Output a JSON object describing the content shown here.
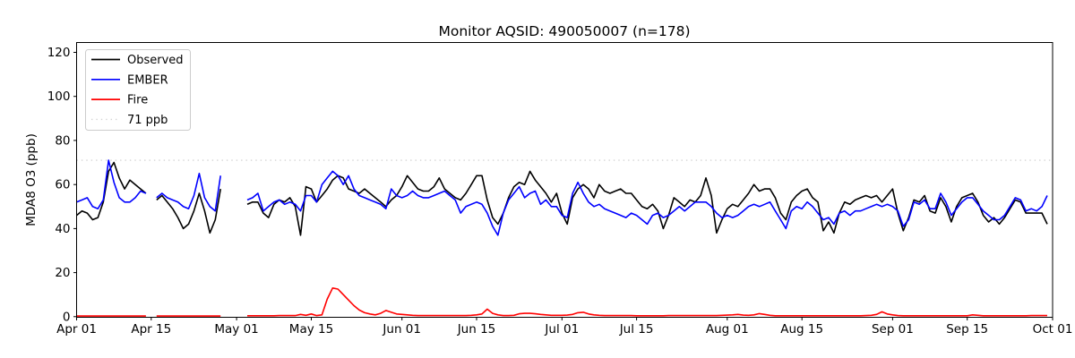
{
  "chart_data": {
    "type": "line",
    "title": "Monitor AQSID: 490050007 (n=178)",
    "xlabel": "",
    "ylabel": "MDA8 O3 (ppb)",
    "n_label": "n=178",
    "ylim": [
      0,
      124
    ],
    "grid": false,
    "yticks": [
      0,
      20,
      40,
      60,
      80,
      100,
      120
    ],
    "xticks": [
      {
        "label": "Apr 01",
        "day": 0
      },
      {
        "label": "Apr 15",
        "day": 14
      },
      {
        "label": "May 01",
        "day": 30
      },
      {
        "label": "May 15",
        "day": 44
      },
      {
        "label": "Jun 01",
        "day": 61
      },
      {
        "label": "Jun 15",
        "day": 75
      },
      {
        "label": "Jul 01",
        "day": 91
      },
      {
        "label": "Jul 15",
        "day": 105
      },
      {
        "label": "Aug 01",
        "day": 122
      },
      {
        "label": "Aug 15",
        "day": 136
      },
      {
        "label": "Sep 01",
        "day": 153
      },
      {
        "label": "Sep 15",
        "day": 167
      },
      {
        "label": "Oct 01",
        "day": 183
      }
    ],
    "threshold": {
      "label": "71 ppb",
      "value": 71,
      "color": "#d3d3d3",
      "style": "dotted"
    },
    "legend": {
      "position": "upper left",
      "entries": [
        {
          "id": "observed",
          "label": "Observed",
          "color": "#000000",
          "dotted": false
        },
        {
          "id": "ember",
          "label": "EMBER",
          "color": "#0000ff",
          "dotted": false
        },
        {
          "id": "fire",
          "label": "Fire",
          "color": "#ff0000",
          "dotted": false
        },
        {
          "id": "threshold",
          "label": "71 ppb",
          "color": "#d3d3d3",
          "dotted": true
        }
      ]
    },
    "x_axis_note": "daily values, Apr 01 through Sep 30; nulls are missing monitor days",
    "series": [
      {
        "id": "observed",
        "name": "Observed",
        "color": "#000000",
        "values": [
          46,
          48,
          47,
          44,
          45,
          52,
          66,
          70,
          63,
          58,
          62,
          60,
          58,
          56,
          null,
          53,
          55,
          52,
          49,
          45,
          40,
          42,
          48,
          56,
          48,
          38,
          44,
          58,
          null,
          null,
          null,
          null,
          51,
          52,
          52,
          47,
          45,
          51,
          53,
          52,
          54,
          50,
          37,
          59,
          58,
          52,
          55,
          58,
          62,
          64,
          63,
          58,
          57,
          56,
          58,
          56,
          54,
          52,
          50,
          53,
          55,
          59,
          64,
          61,
          58,
          57,
          57,
          59,
          63,
          58,
          56,
          54,
          53,
          56,
          60,
          64,
          64,
          53,
          45,
          42,
          47,
          54,
          59,
          61,
          60,
          66,
          62,
          59,
          56,
          52,
          56,
          47,
          42,
          54,
          58,
          60,
          58,
          54,
          60,
          57,
          56,
          57,
          58,
          56,
          56,
          53,
          50,
          49,
          51,
          48,
          40,
          46,
          54,
          52,
          50,
          53,
          52,
          55,
          63,
          55,
          38,
          44,
          49,
          51,
          50,
          53,
          56,
          60,
          57,
          58,
          58,
          54,
          47,
          44,
          52,
          55,
          57,
          58,
          54,
          52,
          39,
          43,
          38,
          47,
          52,
          51,
          53,
          54,
          55,
          54,
          55,
          52,
          55,
          58,
          47,
          39,
          45,
          53,
          52,
          55,
          48,
          47,
          54,
          50,
          43,
          50,
          54,
          55,
          56,
          52,
          46,
          43,
          45,
          42,
          45,
          49,
          53,
          52,
          47,
          47,
          47,
          47,
          42
        ]
      },
      {
        "id": "ember",
        "name": "EMBER",
        "color": "#0000ff",
        "values": [
          52,
          53,
          54,
          50,
          49,
          53,
          71,
          61,
          54,
          52,
          52,
          54,
          57,
          56,
          null,
          54,
          56,
          54,
          53,
          52,
          50,
          49,
          55,
          65,
          54,
          50,
          48,
          64,
          null,
          null,
          null,
          null,
          53,
          54,
          56,
          48,
          50,
          52,
          53,
          51,
          52,
          51,
          48,
          55,
          55,
          52,
          60,
          63,
          66,
          64,
          60,
          64,
          58,
          55,
          54,
          53,
          52,
          51,
          49,
          58,
          55,
          54,
          55,
          57,
          55,
          54,
          54,
          55,
          56,
          57,
          55,
          53,
          47,
          50,
          51,
          52,
          51,
          47,
          41,
          37,
          47,
          53,
          56,
          59,
          54,
          56,
          57,
          51,
          53,
          50,
          50,
          46,
          45,
          56,
          61,
          56,
          52,
          50,
          51,
          49,
          48,
          47,
          46,
          45,
          47,
          46,
          44,
          42,
          46,
          47,
          45,
          46,
          48,
          50,
          48,
          50,
          52,
          52,
          52,
          50,
          47,
          45,
          46,
          45,
          46,
          48,
          50,
          51,
          50,
          51,
          52,
          48,
          44,
          40,
          48,
          50,
          49,
          52,
          50,
          47,
          44,
          45,
          42,
          47,
          48,
          46,
          48,
          48,
          49,
          50,
          51,
          50,
          51,
          50,
          48,
          41,
          44,
          52,
          51,
          53,
          49,
          49,
          56,
          52,
          46,
          49,
          52,
          54,
          54,
          51,
          48,
          46,
          44,
          44,
          46,
          50,
          54,
          53,
          48,
          49,
          48,
          50,
          55
        ]
      },
      {
        "id": "fire",
        "name": "Fire",
        "color": "#ff0000",
        "values": [
          0.3,
          0.3,
          0.3,
          0.3,
          0.3,
          0.3,
          0.3,
          0.3,
          0.3,
          0.3,
          0.3,
          0.3,
          0.3,
          0.3,
          null,
          0.3,
          0.3,
          0.3,
          0.3,
          0.3,
          0.3,
          0.3,
          0.3,
          0.3,
          0.3,
          0.3,
          0.3,
          0.3,
          null,
          null,
          null,
          null,
          0.4,
          0.4,
          0.4,
          0.4,
          0.4,
          0.4,
          0.5,
          0.5,
          0.5,
          0.5,
          1.0,
          0.6,
          1.2,
          0.5,
          0.8,
          8,
          13,
          12.5,
          10,
          7.5,
          5,
          3,
          1.8,
          1.2,
          0.8,
          1.5,
          2.8,
          2.0,
          1.2,
          1.0,
          0.8,
          0.6,
          0.5,
          0.5,
          0.5,
          0.5,
          0.5,
          0.5,
          0.5,
          0.5,
          0.5,
          0.5,
          0.6,
          0.8,
          1.2,
          3.4,
          1.5,
          0.8,
          0.5,
          0.5,
          0.6,
          1.3,
          1.5,
          1.5,
          1.3,
          1.0,
          0.8,
          0.6,
          0.6,
          0.6,
          0.7,
          1.0,
          1.8,
          2.0,
          1.2,
          0.8,
          0.6,
          0.5,
          0.5,
          0.5,
          0.5,
          0.5,
          0.5,
          0.4,
          0.4,
          0.4,
          0.4,
          0.4,
          0.4,
          0.5,
          0.5,
          0.5,
          0.5,
          0.5,
          0.5,
          0.5,
          0.5,
          0.5,
          0.5,
          0.6,
          0.7,
          0.8,
          1.0,
          0.7,
          0.6,
          0.8,
          1.4,
          1.0,
          0.6,
          0.4,
          0.4,
          0.4,
          0.4,
          0.4,
          0.4,
          0.4,
          0.4,
          0.4,
          0.4,
          0.4,
          0.4,
          0.4,
          0.4,
          0.4,
          0.4,
          0.4,
          0.5,
          0.6,
          1.0,
          2.2,
          1.2,
          0.8,
          0.5,
          0.4,
          0.4,
          0.4,
          0.4,
          0.4,
          0.4,
          0.4,
          0.4,
          0.4,
          0.4,
          0.4,
          0.4,
          0.4,
          0.8,
          0.6,
          0.4,
          0.4,
          0.4,
          0.4,
          0.4,
          0.4,
          0.4,
          0.4,
          0.4,
          0.5,
          0.5,
          0.5,
          0.5
        ]
      }
    ]
  }
}
